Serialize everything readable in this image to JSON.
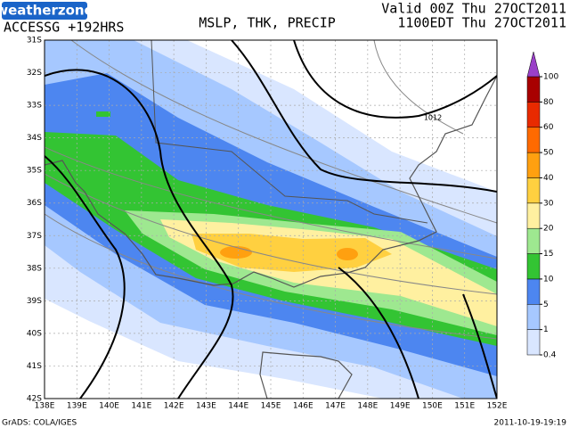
{
  "header": {
    "logo": "weatherzone",
    "model": "ACCESSG +192HRS",
    "title": "MSLP, THK, PRECIP",
    "valid_utc": "Valid 00Z Thu 27OCT2011",
    "valid_local": "1100EDT Thu 27OCT2011"
  },
  "map": {
    "lat_labels": [
      "31S",
      "32S",
      "33S",
      "34S",
      "35S",
      "36S",
      "37S",
      "38S",
      "39S",
      "40S",
      "41S",
      "42S"
    ],
    "lon_labels": [
      "138E",
      "139E",
      "140E",
      "141E",
      "142E",
      "143E",
      "144E",
      "145E",
      "146E",
      "147E",
      "148E",
      "149E",
      "150E",
      "151E",
      "152E"
    ],
    "contour_labels": [
      "1012"
    ]
  },
  "colorbar": {
    "levels": [
      0.4,
      1,
      5,
      10,
      15,
      20,
      30,
      40,
      50,
      60,
      80,
      100
    ],
    "colors": [
      "#d9e6ff",
      "#a6c8ff",
      "#4d86f0",
      "#33c433",
      "#9ee890",
      "#fff0a0",
      "#ffd040",
      "#ffa010",
      "#ff6a00",
      "#e82a00",
      "#a80000",
      "#9a40c8"
    ]
  },
  "footer": {
    "credit": "GrADS: COLA/IGES",
    "timestamp": "2011-10-19-19:19"
  }
}
